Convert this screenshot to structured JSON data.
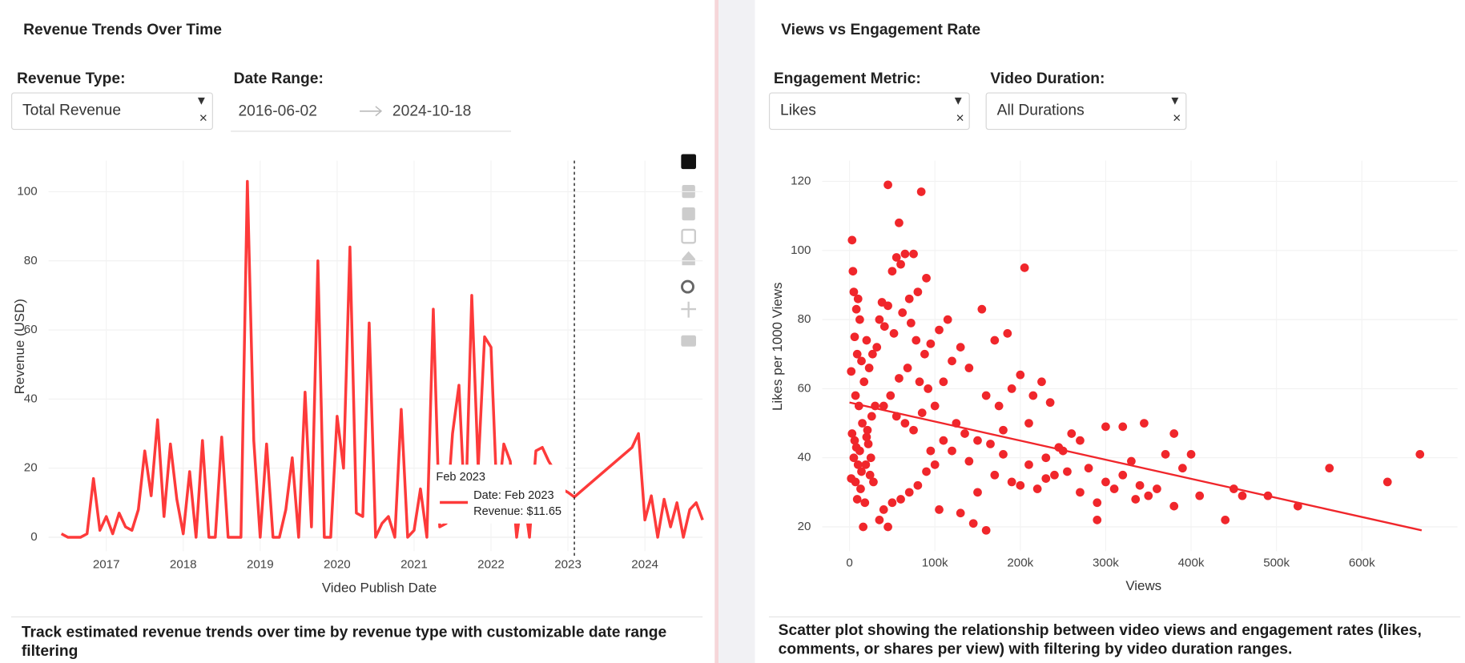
{
  "panels": [
    {
      "title": "Revenue Trends Over Time",
      "controls": [
        {
          "label": "Revenue Type:",
          "value": "Total Revenue"
        },
        {
          "label": "Date Range:",
          "start": "2016-06-02",
          "end": "2024-10-18"
        }
      ],
      "description": "Track estimated revenue trends over time by revenue type with customizable date range filtering"
    },
    {
      "title": "Views vs Engagement Rate",
      "controls": [
        {
          "label": "Engagement Metric:",
          "value": "Likes"
        },
        {
          "label": "Video Duration:",
          "value": "All Durations"
        }
      ],
      "description": "Scatter plot showing the relationship between video views and engagement rates (likes, comments, or shares per view) with filtering by video duration ranges."
    }
  ],
  "chart_data": [
    {
      "type": "line",
      "x_label": "Video Publish Date",
      "y_label": "Revenue (USD)",
      "color": "#fd3a3a",
      "grid": true,
      "x": [
        "2016-06",
        "2016-07",
        "2016-08",
        "2016-09",
        "2016-10",
        "2016-11",
        "2016-12",
        "2017-01",
        "2017-02",
        "2017-03",
        "2017-04",
        "2017-05",
        "2017-06",
        "2017-07",
        "2017-08",
        "2017-09",
        "2017-10",
        "2017-11",
        "2017-12",
        "2018-01",
        "2018-02",
        "2018-03",
        "2018-04",
        "2018-05",
        "2018-06",
        "2018-07",
        "2018-08",
        "2018-09",
        "2018-10",
        "2018-11",
        "2018-12",
        "2019-01",
        "2019-02",
        "2019-03",
        "2019-04",
        "2019-05",
        "2019-06",
        "2019-07",
        "2019-08",
        "2019-09",
        "2019-10",
        "2019-11",
        "2019-12",
        "2020-01",
        "2020-02",
        "2020-03",
        "2020-04",
        "2020-05",
        "2020-06",
        "2020-07",
        "2020-08",
        "2020-09",
        "2020-10",
        "2020-11",
        "2020-12",
        "2021-01",
        "2021-02",
        "2021-03",
        "2021-04",
        "2021-05",
        "2021-06",
        "2021-07",
        "2021-08",
        "2021-09",
        "2021-10",
        "2021-11",
        "2021-12",
        "2022-01",
        "2022-02",
        "2022-03",
        "2022-04",
        "2022-05",
        "2022-06",
        "2022-07",
        "2022-08",
        "2022-09",
        "2022-10",
        "2022-11",
        "2022-12",
        "2023-01",
        "2023-02",
        "2023-11",
        "2023-12",
        "2024-01",
        "2024-02",
        "2024-03",
        "2024-04",
        "2024-05",
        "2024-06",
        "2024-07",
        "2024-08",
        "2024-09",
        "2024-10"
      ],
      "values": [
        1,
        0,
        0,
        0,
        1,
        17,
        2,
        6,
        1,
        7,
        3,
        2,
        8,
        25,
        12,
        34,
        6,
        27,
        11,
        1,
        19,
        0,
        28,
        0,
        0,
        29,
        0,
        0,
        0,
        103,
        28,
        0,
        27,
        0,
        0,
        8,
        23,
        0,
        42,
        3,
        80,
        0,
        0,
        35,
        20,
        84,
        7,
        6,
        62,
        0,
        4,
        6,
        0,
        37,
        0,
        2,
        14,
        0,
        66,
        3,
        4,
        30,
        44,
        5,
        70,
        20,
        58,
        55,
        8,
        27,
        22,
        0,
        14,
        0,
        25,
        26,
        22,
        19,
        14,
        13,
        11.65,
        26,
        30,
        5,
        12,
        0,
        11,
        3,
        10,
        0,
        8,
        10,
        5
      ],
      "xlim": [
        "2016-04",
        "2024-10"
      ],
      "xticks": [
        "2017",
        "2018",
        "2019",
        "2020",
        "2021",
        "2022",
        "2023",
        "2024"
      ],
      "ylim": [
        -4,
        109
      ],
      "yticks": [
        0,
        20,
        40,
        60,
        80,
        100
      ],
      "tooltip": {
        "x": "2023-02",
        "title": "Feb 2023",
        "lines": [
          "Date: Feb 2023",
          "Revenue: $11.65"
        ]
      }
    },
    {
      "type": "scatter",
      "x_label": "Views",
      "y_label": "Likes per 1000 Views",
      "color": "#f0262b",
      "grid": true,
      "x": [
        3000,
        5000,
        8000,
        4000,
        10000,
        12000,
        6000,
        9000,
        14000,
        2000,
        7000,
        11000,
        15000,
        3000,
        6000,
        8000,
        12000,
        5000,
        10000,
        14000,
        2000,
        7000,
        13000,
        9000,
        18000,
        16000,
        20000,
        22000,
        25000,
        19000,
        24000,
        28000,
        21000,
        26000,
        30000,
        17000,
        23000,
        27000,
        20000,
        32000,
        35000,
        38000,
        41000,
        45000,
        58000,
        55000,
        65000,
        75000,
        84000,
        60000,
        50000,
        70000,
        80000,
        90000,
        45000,
        62000,
        72000,
        52000,
        78000,
        88000,
        95000,
        68000,
        58000,
        82000,
        92000,
        48000,
        40000,
        55000,
        65000,
        75000,
        85000,
        100000,
        110000,
        120000,
        130000,
        115000,
        105000,
        140000,
        155000,
        170000,
        185000,
        160000,
        175000,
        190000,
        200000,
        205000,
        215000,
        225000,
        235000,
        210000,
        180000,
        150000,
        135000,
        125000,
        110000,
        95000,
        100000,
        90000,
        80000,
        70000,
        60000,
        50000,
        40000,
        35000,
        45000,
        105000,
        130000,
        145000,
        160000,
        150000,
        170000,
        190000,
        210000,
        230000,
        250000,
        260000,
        270000,
        240000,
        220000,
        200000,
        180000,
        165000,
        140000,
        120000,
        280000,
        290000,
        300000,
        310000,
        320000,
        330000,
        340000,
        300000,
        320000,
        350000,
        360000,
        370000,
        380000,
        390000,
        400000,
        410000,
        380000,
        290000,
        440000,
        450000,
        460000,
        490000,
        525000,
        562000,
        630000,
        668000,
        335000,
        345000,
        270000,
        255000,
        245000,
        230000
      ],
      "values": [
        103,
        88,
        83,
        94,
        86,
        80,
        75,
        70,
        68,
        65,
        58,
        55,
        50,
        47,
        45,
        43,
        42,
        40,
        38,
        36,
        34,
        33,
        31,
        28,
        27,
        20,
        46,
        44,
        40,
        38,
        35,
        33,
        48,
        52,
        55,
        62,
        66,
        70,
        74,
        72,
        80,
        85,
        78,
        119,
        108,
        98,
        99,
        99,
        117,
        96,
        94,
        86,
        88,
        92,
        84,
        82,
        79,
        76,
        74,
        70,
        73,
        66,
        63,
        62,
        60,
        58,
        55,
        52,
        50,
        48,
        53,
        55,
        62,
        68,
        72,
        80,
        77,
        66,
        83,
        74,
        76,
        58,
        55,
        60,
        64,
        95,
        58,
        62,
        56,
        50,
        48,
        45,
        47,
        50,
        45,
        42,
        38,
        36,
        32,
        30,
        28,
        27,
        25,
        22,
        20,
        25,
        24,
        21,
        19,
        30,
        35,
        33,
        38,
        40,
        42,
        47,
        45,
        35,
        31,
        32,
        41,
        44,
        39,
        42,
        37,
        27,
        33,
        31,
        35,
        39,
        32,
        49,
        49,
        29,
        31,
        41,
        47,
        37,
        41,
        29,
        26,
        22,
        22,
        31,
        29,
        29,
        26,
        37,
        33,
        41,
        28,
        50,
        30,
        36,
        43,
        34
      ],
      "trendline": {
        "x": [
          0,
          670000
        ],
        "values": [
          56,
          19
        ]
      },
      "xlim": [
        -32000,
        712000
      ],
      "xticks": [
        0,
        {
          "value": 100000,
          "label": "100k"
        },
        {
          "value": 200000,
          "label": "200k"
        },
        {
          "value": 300000,
          "label": "300k"
        },
        {
          "value": 400000,
          "label": "400k"
        },
        {
          "value": 500000,
          "label": "500k"
        },
        {
          "value": 600000,
          "label": "600k"
        }
      ],
      "ylim": [
        13,
        126
      ],
      "yticks": [
        20,
        40,
        60,
        80,
        100,
        120
      ]
    }
  ]
}
